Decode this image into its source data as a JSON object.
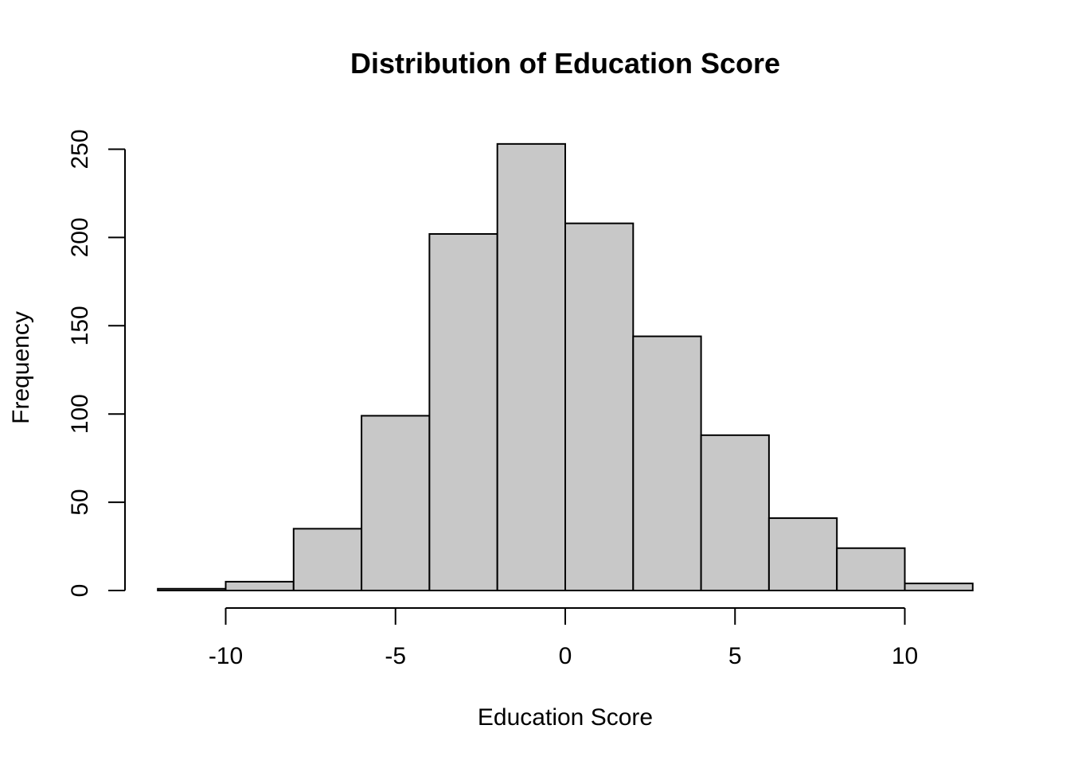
{
  "chart_data": {
    "type": "bar",
    "title": "Distribution of Education Score",
    "xlabel": "Education Score",
    "ylabel": "Frequency",
    "bins": [
      {
        "x0": -12,
        "x1": -10,
        "count": 1
      },
      {
        "x0": -10,
        "x1": -8,
        "count": 5
      },
      {
        "x0": -8,
        "x1": -6,
        "count": 35
      },
      {
        "x0": -6,
        "x1": -4,
        "count": 99
      },
      {
        "x0": -4,
        "x1": -2,
        "count": 202
      },
      {
        "x0": -2,
        "x1": 0,
        "count": 253
      },
      {
        "x0": 0,
        "x1": 2,
        "count": 208
      },
      {
        "x0": 2,
        "x1": 4,
        "count": 144
      },
      {
        "x0": 4,
        "x1": 6,
        "count": 88
      },
      {
        "x0": 6,
        "x1": 8,
        "count": 41
      },
      {
        "x0": 8,
        "x1": 10,
        "count": 24
      },
      {
        "x0": 10,
        "x1": 12,
        "count": 4
      }
    ],
    "xlim": [
      -12,
      12
    ],
    "ylim": [
      0,
      250
    ],
    "x_ticks": [
      -10,
      -5,
      0,
      5,
      10
    ],
    "y_ticks": [
      0,
      50,
      100,
      150,
      200,
      250
    ],
    "grid": false,
    "bar_color": "#c8c8c8",
    "edge_color": "#000000"
  }
}
